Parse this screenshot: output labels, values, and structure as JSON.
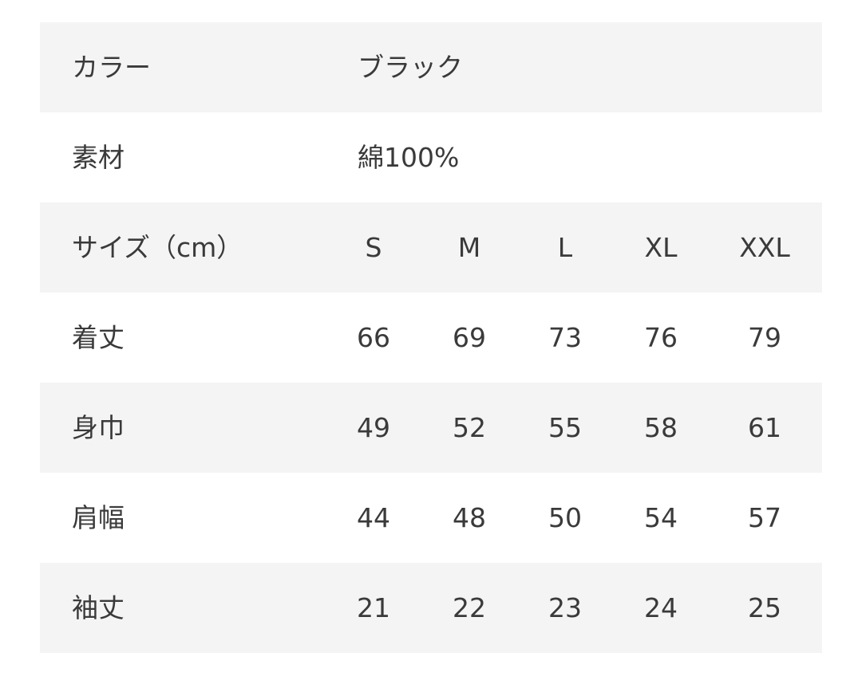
{
  "rows_info": [
    {
      "label": "カラー",
      "value": "ブラック"
    },
    {
      "label": "素材",
      "value": "綿100%"
    }
  ],
  "size_header": {
    "label": "サイズ（cm）",
    "sizes": [
      "S",
      "M",
      "L",
      "XL",
      "XXL"
    ]
  },
  "measurements": [
    {
      "label": "着丈",
      "values": [
        "66",
        "69",
        "73",
        "76",
        "79"
      ]
    },
    {
      "label": "身巾",
      "values": [
        "49",
        "52",
        "55",
        "58",
        "61"
      ]
    },
    {
      "label": "肩幅",
      "values": [
        "44",
        "48",
        "50",
        "54",
        "57"
      ]
    },
    {
      "label": "袖丈",
      "values": [
        "21",
        "22",
        "23",
        "24",
        "25"
      ]
    }
  ],
  "colors": {
    "stripe": "#f4f4f4",
    "text": "#3a3a3a"
  }
}
